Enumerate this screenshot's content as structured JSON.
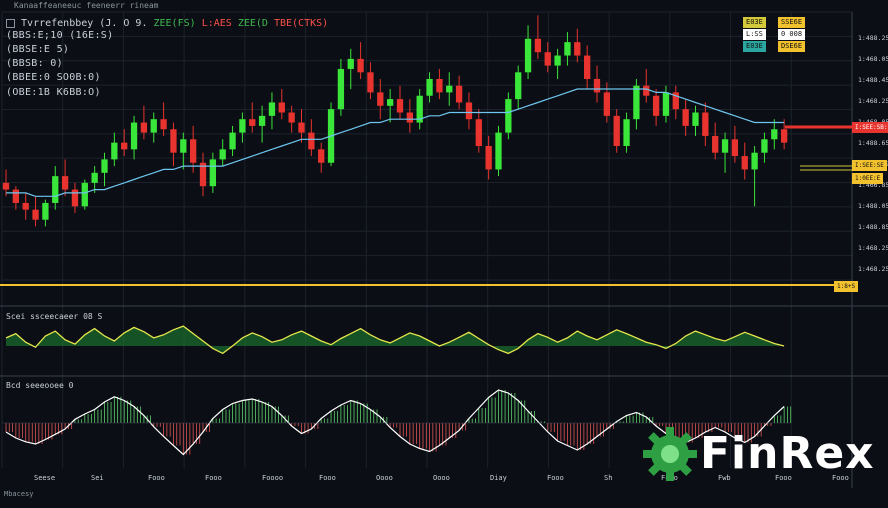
{
  "app": {
    "top_title": "Kanaaffeaneeuc feeneerr rineam",
    "symbol_line": "Tvrrefenbbey (J.   O 9.",
    "values": [
      {
        "text": "ZEE(FS)",
        "color": "#3fb950"
      },
      {
        "text": "L:AES",
        "color": "#f85149"
      },
      {
        "text": "ZEE(D",
        "color": "#3fb950"
      },
      {
        "text": "TBE(CTKS)",
        "color": "#f85149"
      }
    ],
    "info_lines": [
      "(BBS:E;10  (16E:S)",
      "(BBSE:E  5)",
      "(BBSB:  0)",
      "(BBEE:0  SO0B:0)",
      "(OBE:1B   K6BB:O)"
    ],
    "footer": "Mbacesy"
  },
  "legend": {
    "rows": [
      {
        "left": "E03E",
        "right": "SSE6E"
      },
      {
        "left": "L:SS",
        "right": "0  008"
      },
      {
        "left": "E03E",
        "right": "DSE6E"
      }
    ]
  },
  "price_labels": {
    "current": "I:SEE:SB:",
    "yellow_a": "I:SEE:SE",
    "yellow_b": "1:0EE:E",
    "hline": "1:8+S"
  },
  "panels": {
    "osc1": "Scei ssceecaeer 08 S",
    "osc2": "Bcd seeeooee 0"
  },
  "brand": {
    "name": "FinRex",
    "accent": "#3fb950",
    "gear": "#2ea043"
  },
  "colors": {
    "up": "#39e639",
    "down": "#e8332e",
    "ma": "#6ec6f0",
    "hline": "#f2c12e",
    "osc": "#e6e64c",
    "osc_fill": "#1a6b2c",
    "hist_up": "#5dd36a",
    "hist_down": "#e05555"
  },
  "chart_data": [
    {
      "type": "candlestick",
      "title": "Price",
      "ylim": [
        1380,
        1460
      ],
      "y_ticks": [
        "1:488.25",
        "1:468.05",
        "1:488.45",
        "1:468.25",
        "1:468.05",
        "1:488.65",
        "1:468.02",
        "1:466.85",
        "1:488.05",
        "1:488.85",
        "1:468.25",
        "1:468.25"
      ],
      "x_ticks": [
        "Seese",
        "Sei",
        "Fooo",
        "Fooo",
        "Foooo",
        "Fooo",
        "Oooo",
        "Oooo",
        "Diay",
        "Fooo",
        "Sh",
        "Fooo",
        "Fwb",
        "Fooo",
        "Fooo"
      ],
      "ohlc": [
        [
          1409,
          1413,
          1405,
          1407
        ],
        [
          1407,
          1408,
          1401,
          1403
        ],
        [
          1403,
          1406,
          1398,
          1401
        ],
        [
          1401,
          1405,
          1396,
          1398
        ],
        [
          1398,
          1404,
          1396,
          1403
        ],
        [
          1403,
          1414,
          1401,
          1411
        ],
        [
          1411,
          1416,
          1405,
          1407
        ],
        [
          1407,
          1409,
          1400,
          1402
        ],
        [
          1402,
          1410,
          1401,
          1409
        ],
        [
          1409,
          1414,
          1406,
          1412
        ],
        [
          1412,
          1418,
          1408,
          1416
        ],
        [
          1416,
          1424,
          1414,
          1421
        ],
        [
          1421,
          1425,
          1417,
          1419
        ],
        [
          1419,
          1429,
          1416,
          1427
        ],
        [
          1427,
          1432,
          1422,
          1424
        ],
        [
          1424,
          1430,
          1421,
          1428
        ],
        [
          1428,
          1433,
          1423,
          1425
        ],
        [
          1425,
          1427,
          1414,
          1418
        ],
        [
          1418,
          1424,
          1413,
          1422
        ],
        [
          1422,
          1426,
          1412,
          1415
        ],
        [
          1415,
          1418,
          1405,
          1408
        ],
        [
          1408,
          1418,
          1406,
          1416
        ],
        [
          1416,
          1422,
          1414,
          1419
        ],
        [
          1419,
          1426,
          1417,
          1424
        ],
        [
          1424,
          1430,
          1421,
          1428
        ],
        [
          1428,
          1433,
          1424,
          1426
        ],
        [
          1426,
          1432,
          1421,
          1429
        ],
        [
          1429,
          1436,
          1425,
          1433
        ],
        [
          1433,
          1437,
          1428,
          1430
        ],
        [
          1430,
          1432,
          1424,
          1427
        ],
        [
          1427,
          1431,
          1421,
          1424
        ],
        [
          1424,
          1428,
          1417,
          1419
        ],
        [
          1419,
          1421,
          1412,
          1415
        ],
        [
          1415,
          1433,
          1414,
          1431
        ],
        [
          1431,
          1446,
          1429,
          1443
        ],
        [
          1443,
          1449,
          1437,
          1446
        ],
        [
          1446,
          1451,
          1440,
          1442
        ],
        [
          1442,
          1445,
          1434,
          1436
        ],
        [
          1436,
          1440,
          1428,
          1432
        ],
        [
          1432,
          1437,
          1427,
          1434
        ],
        [
          1434,
          1438,
          1428,
          1430
        ],
        [
          1430,
          1434,
          1424,
          1427
        ],
        [
          1427,
          1437,
          1425,
          1435
        ],
        [
          1435,
          1442,
          1433,
          1440
        ],
        [
          1440,
          1443,
          1434,
          1436
        ],
        [
          1436,
          1442,
          1432,
          1438
        ],
        [
          1438,
          1441,
          1431,
          1433
        ],
        [
          1433,
          1436,
          1425,
          1428
        ],
        [
          1428,
          1431,
          1418,
          1420
        ],
        [
          1420,
          1423,
          1410,
          1413
        ],
        [
          1413,
          1426,
          1411,
          1424
        ],
        [
          1424,
          1436,
          1422,
          1434
        ],
        [
          1434,
          1444,
          1431,
          1442
        ],
        [
          1442,
          1456,
          1440,
          1452
        ],
        [
          1452,
          1459,
          1446,
          1448
        ],
        [
          1448,
          1451,
          1442,
          1444
        ],
        [
          1444,
          1449,
          1440,
          1447
        ],
        [
          1447,
          1454,
          1444,
          1451
        ],
        [
          1451,
          1455,
          1445,
          1447
        ],
        [
          1447,
          1450,
          1437,
          1440
        ],
        [
          1440,
          1444,
          1433,
          1436
        ],
        [
          1436,
          1439,
          1427,
          1429
        ],
        [
          1429,
          1431,
          1418,
          1420
        ],
        [
          1420,
          1430,
          1418,
          1428
        ],
        [
          1428,
          1440,
          1425,
          1438
        ],
        [
          1438,
          1443,
          1433,
          1435
        ],
        [
          1435,
          1437,
          1426,
          1429
        ],
        [
          1429,
          1438,
          1427,
          1436
        ],
        [
          1436,
          1438,
          1428,
          1431
        ],
        [
          1431,
          1434,
          1423,
          1426
        ],
        [
          1426,
          1432,
          1423,
          1430
        ],
        [
          1430,
          1433,
          1420,
          1423
        ],
        [
          1423,
          1427,
          1416,
          1418
        ],
        [
          1418,
          1424,
          1412,
          1422
        ],
        [
          1422,
          1426,
          1415,
          1417
        ],
        [
          1417,
          1421,
          1410,
          1413
        ],
        [
          1413,
          1420,
          1402,
          1418
        ],
        [
          1418,
          1424,
          1415,
          1422
        ],
        [
          1422,
          1428,
          1419,
          1425
        ],
        [
          1425,
          1428,
          1419,
          1421
        ]
      ],
      "ma": [
        1406,
        1406,
        1406,
        1405,
        1405,
        1405,
        1406,
        1406,
        1406,
        1407,
        1407,
        1408,
        1409,
        1410,
        1411,
        1412,
        1413,
        1413,
        1414,
        1414,
        1414,
        1414,
        1414,
        1415,
        1416,
        1417,
        1418,
        1419,
        1420,
        1421,
        1422,
        1422,
        1422,
        1423,
        1424,
        1425,
        1426,
        1427,
        1427,
        1428,
        1428,
        1428,
        1428,
        1429,
        1429,
        1430,
        1430,
        1430,
        1430,
        1430,
        1430,
        1430,
        1431,
        1432,
        1433,
        1434,
        1435,
        1436,
        1437,
        1437,
        1437,
        1437,
        1437,
        1437,
        1437,
        1437,
        1436,
        1436,
        1435,
        1434,
        1433,
        1432,
        1431,
        1430,
        1429,
        1428,
        1427,
        1427,
        1427,
        1427
      ]
    },
    {
      "type": "line",
      "title": "Oscillator 1",
      "ylim": [
        0,
        100
      ],
      "values": [
        55,
        62,
        48,
        40,
        58,
        66,
        52,
        45,
        60,
        70,
        58,
        50,
        63,
        72,
        65,
        55,
        60,
        68,
        74,
        62,
        50,
        38,
        30,
        42,
        55,
        63,
        57,
        48,
        52,
        60,
        66,
        58,
        50,
        44,
        54,
        62,
        70,
        60,
        52,
        47,
        55,
        63,
        58,
        50,
        42,
        48,
        56,
        64,
        54,
        44,
        36,
        30,
        38,
        52,
        62,
        56,
        48,
        55,
        66,
        58,
        52,
        60,
        68,
        62,
        55,
        48,
        44,
        38,
        46,
        58,
        66,
        60,
        54,
        50,
        57,
        64,
        58,
        52,
        46,
        42
      ]
    },
    {
      "type": "histogram",
      "title": "Oscillator 2",
      "ylim": [
        -60,
        60
      ],
      "values": [
        -12,
        -20,
        -25,
        -28,
        -22,
        -15,
        -8,
        5,
        12,
        18,
        28,
        35,
        30,
        22,
        10,
        -5,
        -18,
        -30,
        -42,
        -28,
        -12,
        6,
        18,
        26,
        30,
        32,
        28,
        22,
        10,
        -4,
        -14,
        -8,
        6,
        16,
        24,
        30,
        26,
        18,
        8,
        -6,
        -18,
        -28,
        -34,
        -38,
        -30,
        -20,
        -10,
        6,
        20,
        34,
        44,
        40,
        30,
        16,
        2,
        -12,
        -24,
        -30,
        -36,
        -28,
        -18,
        -8,
        2,
        10,
        14,
        8,
        -4,
        -14,
        -22,
        -26,
        -20,
        -12,
        -6,
        -12,
        -20,
        -26,
        -18,
        -4,
        10,
        22
      ]
    }
  ]
}
